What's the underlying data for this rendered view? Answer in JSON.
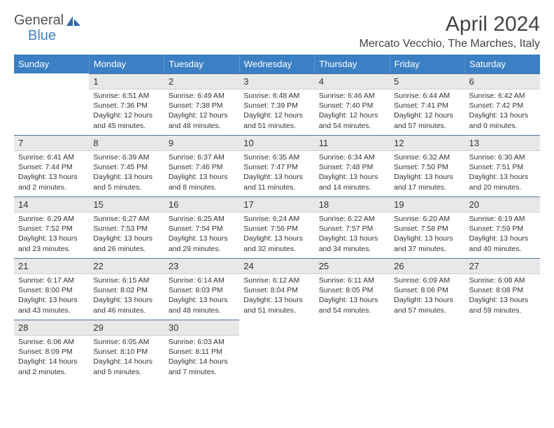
{
  "brand": {
    "part1": "General",
    "part2": "Blue"
  },
  "title": "April 2024",
  "location": "Mercato Vecchio, The Marches, Italy",
  "colors": {
    "accent": "#3b7fc4",
    "header_day_bg": "#e8e8e8",
    "row_divider": "#4a75a5",
    "text": "#333333",
    "background": "#ffffff"
  },
  "calendar": {
    "day_headers": [
      "Sunday",
      "Monday",
      "Tuesday",
      "Wednesday",
      "Thursday",
      "Friday",
      "Saturday"
    ],
    "weeks": [
      [
        null,
        {
          "n": "1",
          "sunrise": "6:51 AM",
          "sunset": "7:36 PM",
          "daylight": "12 hours and 45 minutes."
        },
        {
          "n": "2",
          "sunrise": "6:49 AM",
          "sunset": "7:38 PM",
          "daylight": "12 hours and 48 minutes."
        },
        {
          "n": "3",
          "sunrise": "6:48 AM",
          "sunset": "7:39 PM",
          "daylight": "12 hours and 51 minutes."
        },
        {
          "n": "4",
          "sunrise": "6:46 AM",
          "sunset": "7:40 PM",
          "daylight": "12 hours and 54 minutes."
        },
        {
          "n": "5",
          "sunrise": "6:44 AM",
          "sunset": "7:41 PM",
          "daylight": "12 hours and 57 minutes."
        },
        {
          "n": "6",
          "sunrise": "6:42 AM",
          "sunset": "7:42 PM",
          "daylight": "13 hours and 0 minutes."
        }
      ],
      [
        {
          "n": "7",
          "sunrise": "6:41 AM",
          "sunset": "7:44 PM",
          "daylight": "13 hours and 2 minutes."
        },
        {
          "n": "8",
          "sunrise": "6:39 AM",
          "sunset": "7:45 PM",
          "daylight": "13 hours and 5 minutes."
        },
        {
          "n": "9",
          "sunrise": "6:37 AM",
          "sunset": "7:46 PM",
          "daylight": "13 hours and 8 minutes."
        },
        {
          "n": "10",
          "sunrise": "6:35 AM",
          "sunset": "7:47 PM",
          "daylight": "13 hours and 11 minutes."
        },
        {
          "n": "11",
          "sunrise": "6:34 AM",
          "sunset": "7:48 PM",
          "daylight": "13 hours and 14 minutes."
        },
        {
          "n": "12",
          "sunrise": "6:32 AM",
          "sunset": "7:50 PM",
          "daylight": "13 hours and 17 minutes."
        },
        {
          "n": "13",
          "sunrise": "6:30 AM",
          "sunset": "7:51 PM",
          "daylight": "13 hours and 20 minutes."
        }
      ],
      [
        {
          "n": "14",
          "sunrise": "6:29 AM",
          "sunset": "7:52 PM",
          "daylight": "13 hours and 23 minutes."
        },
        {
          "n": "15",
          "sunrise": "6:27 AM",
          "sunset": "7:53 PM",
          "daylight": "13 hours and 26 minutes."
        },
        {
          "n": "16",
          "sunrise": "6:25 AM",
          "sunset": "7:54 PM",
          "daylight": "13 hours and 29 minutes."
        },
        {
          "n": "17",
          "sunrise": "6:24 AM",
          "sunset": "7:56 PM",
          "daylight": "13 hours and 32 minutes."
        },
        {
          "n": "18",
          "sunrise": "6:22 AM",
          "sunset": "7:57 PM",
          "daylight": "13 hours and 34 minutes."
        },
        {
          "n": "19",
          "sunrise": "6:20 AM",
          "sunset": "7:58 PM",
          "daylight": "13 hours and 37 minutes."
        },
        {
          "n": "20",
          "sunrise": "6:19 AM",
          "sunset": "7:59 PM",
          "daylight": "13 hours and 40 minutes."
        }
      ],
      [
        {
          "n": "21",
          "sunrise": "6:17 AM",
          "sunset": "8:00 PM",
          "daylight": "13 hours and 43 minutes."
        },
        {
          "n": "22",
          "sunrise": "6:15 AM",
          "sunset": "8:02 PM",
          "daylight": "13 hours and 46 minutes."
        },
        {
          "n": "23",
          "sunrise": "6:14 AM",
          "sunset": "8:03 PM",
          "daylight": "13 hours and 48 minutes."
        },
        {
          "n": "24",
          "sunrise": "6:12 AM",
          "sunset": "8:04 PM",
          "daylight": "13 hours and 51 minutes."
        },
        {
          "n": "25",
          "sunrise": "6:11 AM",
          "sunset": "8:05 PM",
          "daylight": "13 hours and 54 minutes."
        },
        {
          "n": "26",
          "sunrise": "6:09 AM",
          "sunset": "8:06 PM",
          "daylight": "13 hours and 57 minutes."
        },
        {
          "n": "27",
          "sunrise": "6:08 AM",
          "sunset": "8:08 PM",
          "daylight": "13 hours and 59 minutes."
        }
      ],
      [
        {
          "n": "28",
          "sunrise": "6:06 AM",
          "sunset": "8:09 PM",
          "daylight": "14 hours and 2 minutes."
        },
        {
          "n": "29",
          "sunrise": "6:05 AM",
          "sunset": "8:10 PM",
          "daylight": "14 hours and 5 minutes."
        },
        {
          "n": "30",
          "sunrise": "6:03 AM",
          "sunset": "8:11 PM",
          "daylight": "14 hours and 7 minutes."
        },
        null,
        null,
        null,
        null
      ]
    ]
  }
}
